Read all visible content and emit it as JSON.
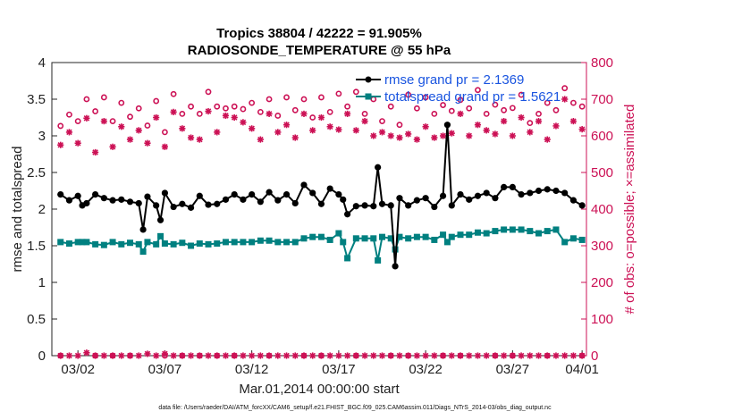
{
  "chart_data": {
    "type": "line",
    "title": "Tropics 38804 / 42222 = 91.905%",
    "subtitle": "RADIOSONDE_TEMPERATURE @ 55 hPa",
    "xlabel": "Mar.01,2014 00:00:00 start",
    "ylabel": "rmse and totalspread",
    "ylabel_right": "# of obs: o=possible; ×=assimilated",
    "xlim": [
      0.5,
      31.25
    ],
    "ylim": [
      0,
      4
    ],
    "ylim_right": [
      0,
      800
    ],
    "x_ticks": [
      {
        "x": 2,
        "label": "03/02"
      },
      {
        "x": 7,
        "label": "03/07"
      },
      {
        "x": 12,
        "label": "03/12"
      },
      {
        "x": 17,
        "label": "03/17"
      },
      {
        "x": 22,
        "label": "03/22"
      },
      {
        "x": 27,
        "label": "03/27"
      },
      {
        "x": 31,
        "label": "04/01"
      }
    ],
    "y_ticks": [
      "0",
      "0.5",
      "1",
      "1.5",
      "2",
      "2.5",
      "3",
      "3.5",
      "4"
    ],
    "y_ticks_right": [
      "0",
      "100",
      "200",
      "300",
      "400",
      "500",
      "600",
      "700",
      "800"
    ],
    "legend": {
      "position": "top-right",
      "entries": [
        "rmse grand pr = 2.1369",
        "totalspread grand pr = 1.5621"
      ]
    },
    "footer": "data file: /Users/raeder/DAI/ATM_forcXX/CAM6_setup/f.e21.FHIST_BGC.f09_025.CAM6assim.011/Diags_NTrS_2014-03/obs_diag_output.nc",
    "colors": {
      "rmse": "#000000",
      "totalspread": "#008080",
      "counts": "#cc1155"
    },
    "series": [
      {
        "name": "rmse",
        "x": [
          1,
          1.5,
          2,
          2.25,
          2.5,
          3,
          3.5,
          4,
          4.5,
          5,
          5.5,
          5.75,
          6,
          6.5,
          6.75,
          7,
          7.5,
          8,
          8.5,
          9,
          9.5,
          10,
          10.5,
          11,
          11.5,
          12,
          12.5,
          13,
          13.5,
          14,
          14.5,
          15,
          15.5,
          16,
          16.5,
          17,
          17.25,
          17.5,
          18,
          18.5,
          19,
          19.25,
          19.5,
          20,
          20.25,
          20.5,
          21,
          21.5,
          22,
          22.5,
          23,
          23.25,
          23.5,
          24,
          24.5,
          25,
          25.5,
          26,
          26.5,
          27,
          27.5,
          28,
          28.5,
          29,
          29.5,
          30,
          30.5,
          31
        ],
        "values": [
          2.2,
          2.12,
          2.18,
          2.05,
          2.08,
          2.2,
          2.15,
          2.12,
          2.13,
          2.1,
          2.08,
          1.72,
          2.17,
          2.05,
          1.85,
          2.22,
          2.03,
          2.07,
          2.02,
          2.18,
          2.06,
          2.07,
          2.13,
          2.2,
          2.13,
          2.2,
          2.1,
          2.23,
          2.12,
          2.2,
          2.08,
          2.33,
          2.22,
          2.07,
          2.28,
          2.2,
          2.13,
          1.93,
          2.04,
          2.05,
          2.04,
          2.57,
          2.07,
          2.05,
          1.22,
          2.15,
          2.05,
          2.12,
          2.15,
          2.03,
          2.18,
          3.15,
          2.05,
          2.2,
          2.13,
          2.18,
          2.22,
          2.15,
          2.3,
          2.3,
          2.2,
          2.22,
          2.25,
          2.27,
          2.25,
          2.22,
          2.12,
          2.05
        ]
      },
      {
        "name": "totalspread",
        "x": [
          1,
          1.5,
          2,
          2.25,
          2.5,
          3,
          3.5,
          4,
          4.5,
          5,
          5.5,
          5.75,
          6,
          6.5,
          6.75,
          7,
          7.5,
          8,
          8.5,
          9,
          9.5,
          10,
          10.5,
          11,
          11.5,
          12,
          12.5,
          13,
          13.5,
          14,
          14.5,
          15,
          15.5,
          16,
          16.5,
          17,
          17.25,
          17.5,
          18,
          18.5,
          19,
          19.25,
          19.5,
          20,
          20.25,
          20.5,
          21,
          21.5,
          22,
          22.5,
          23,
          23.25,
          23.5,
          24,
          24.5,
          25,
          25.5,
          26,
          26.5,
          27,
          27.5,
          28,
          28.5,
          29,
          29.5,
          30,
          30.5,
          31
        ],
        "values": [
          1.55,
          1.53,
          1.55,
          1.55,
          1.55,
          1.52,
          1.51,
          1.55,
          1.52,
          1.54,
          1.52,
          1.42,
          1.55,
          1.52,
          1.63,
          1.53,
          1.52,
          1.54,
          1.5,
          1.53,
          1.52,
          1.53,
          1.55,
          1.55,
          1.55,
          1.55,
          1.57,
          1.57,
          1.55,
          1.55,
          1.55,
          1.6,
          1.62,
          1.62,
          1.58,
          1.67,
          1.55,
          1.33,
          1.6,
          1.6,
          1.6,
          1.3,
          1.62,
          1.6,
          1.45,
          1.62,
          1.6,
          1.62,
          1.62,
          1.58,
          1.65,
          1.55,
          1.62,
          1.65,
          1.65,
          1.68,
          1.67,
          1.7,
          1.72,
          1.72,
          1.72,
          1.7,
          1.67,
          1.7,
          1.72,
          1.55,
          1.6,
          1.58
        ]
      }
    ],
    "obs_counts": {
      "x": [
        1,
        1.5,
        2,
        2.5,
        3,
        3.5,
        4,
        4.5,
        5,
        5.5,
        6,
        6.5,
        7,
        7.5,
        8,
        8.5,
        9,
        9.5,
        10,
        10.5,
        11,
        11.5,
        12,
        12.5,
        13,
        13.5,
        14,
        14.5,
        15,
        15.5,
        16,
        16.5,
        17,
        17.5,
        18,
        18.5,
        19,
        19.5,
        20,
        20.5,
        21,
        21.5,
        22,
        22.5,
        23,
        23.5,
        24,
        24.5,
        25,
        25.5,
        26,
        26.5,
        27,
        27.5,
        28,
        28.5,
        29,
        29.5,
        30,
        30.5,
        31
      ],
      "possible": [
        627,
        658,
        640,
        700,
        667,
        705,
        640,
        690,
        652,
        675,
        628,
        695,
        610,
        714,
        660,
        680,
        660,
        720,
        680,
        675,
        680,
        673,
        690,
        665,
        700,
        655,
        705,
        670,
        700,
        650,
        705,
        665,
        715,
        680,
        720,
        660,
        700,
        640,
        680,
        630,
        712,
        675,
        705,
        660,
        684,
        668,
        698,
        675,
        725,
        660,
        685,
        670,
        676,
        712,
        635,
        660,
        690,
        670,
        730,
        690,
        680
      ],
      "assimilated": [
        575,
        610,
        580,
        648,
        555,
        640,
        570,
        625,
        590,
        615,
        580,
        650,
        570,
        665,
        620,
        595,
        590,
        667,
        610,
        655,
        650,
        637,
        620,
        590,
        660,
        610,
        630,
        595,
        660,
        615,
        650,
        625,
        617,
        660,
        615,
        640,
        600,
        610,
        600,
        595,
        605,
        590,
        625,
        595,
        600,
        607,
        660,
        600,
        630,
        615,
        605,
        640,
        600,
        650,
        610,
        640,
        590,
        627,
        700,
        640,
        618
      ],
      "possible_near_zero": [
        [
          1,
          0
        ],
        [
          3,
          0
        ],
        [
          4,
          0
        ],
        [
          5,
          0
        ],
        [
          7,
          0
        ],
        [
          8,
          0
        ],
        [
          9,
          0
        ],
        [
          10,
          0
        ],
        [
          11,
          0
        ],
        [
          13,
          0
        ],
        [
          15,
          0
        ],
        [
          16,
          0
        ],
        [
          18,
          0
        ],
        [
          20,
          0
        ],
        [
          21,
          0
        ],
        [
          23,
          0
        ],
        [
          24,
          0
        ],
        [
          26,
          0
        ],
        [
          27,
          0
        ],
        [
          29,
          0
        ],
        [
          31,
          0
        ]
      ],
      "assimilated_near_zero": [
        [
          1,
          0
        ],
        [
          1.5,
          0
        ],
        [
          2,
          0
        ],
        [
          2.5,
          8
        ],
        [
          3,
          0
        ],
        [
          3.5,
          0
        ],
        [
          4,
          0
        ],
        [
          4.5,
          0
        ],
        [
          5,
          0
        ],
        [
          5.5,
          0
        ],
        [
          6,
          5
        ],
        [
          6.5,
          0
        ],
        [
          7,
          5
        ],
        [
          7.5,
          0
        ],
        [
          8,
          0
        ],
        [
          8.5,
          0
        ],
        [
          9,
          0
        ],
        [
          9.5,
          0
        ],
        [
          10,
          0
        ],
        [
          10.5,
          0
        ],
        [
          11,
          0
        ],
        [
          11.5,
          0
        ],
        [
          12,
          0
        ],
        [
          12.5,
          0
        ],
        [
          13,
          0
        ],
        [
          13.5,
          0
        ],
        [
          14,
          0
        ],
        [
          14.5,
          0
        ],
        [
          15,
          0
        ],
        [
          15.5,
          0
        ],
        [
          16,
          0
        ],
        [
          16.5,
          0
        ],
        [
          17,
          0
        ],
        [
          17.5,
          0
        ],
        [
          18,
          0
        ],
        [
          18.5,
          0
        ],
        [
          19,
          0
        ],
        [
          19.5,
          0
        ],
        [
          20,
          0
        ],
        [
          20.5,
          0
        ],
        [
          21,
          0
        ],
        [
          21.5,
          0
        ],
        [
          22,
          0
        ],
        [
          22.5,
          0
        ],
        [
          23,
          0
        ],
        [
          23.5,
          0
        ],
        [
          24,
          0
        ],
        [
          24.5,
          0
        ],
        [
          25,
          0
        ],
        [
          25.5,
          0
        ],
        [
          26,
          0
        ],
        [
          26.5,
          0
        ],
        [
          27,
          0
        ],
        [
          27.5,
          0
        ],
        [
          28,
          0
        ],
        [
          28.5,
          0
        ],
        [
          29,
          0
        ],
        [
          29.5,
          0
        ],
        [
          30,
          0
        ],
        [
          30.5,
          0
        ],
        [
          31,
          0
        ]
      ]
    }
  }
}
